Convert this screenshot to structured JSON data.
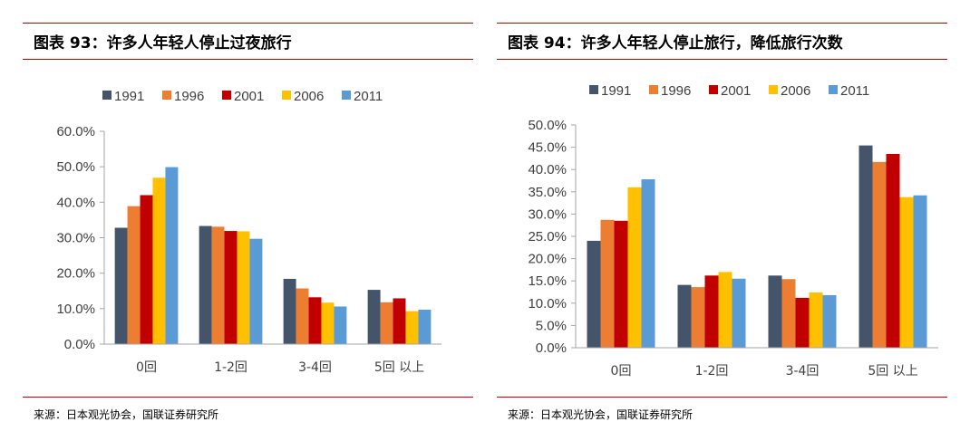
{
  "figures": [
    {
      "title": "图表 93：许多人年轻人停止过夜旅行",
      "source": "来源：日本观光协会，国联证券研究所"
    },
    {
      "title": "图表 94：许多人年轻人停止旅行，降低旅行次数",
      "source": "来源：日本观光协会，国联证券研究所"
    }
  ],
  "colors": {
    "rule": "#C00000",
    "series": [
      "#44546A",
      "#ED7D31",
      "#C00000",
      "#FFC000",
      "#5B9BD5"
    ]
  },
  "chart_data": [
    {
      "type": "bar",
      "title": "",
      "xlabel": "",
      "ylabel": "",
      "categories": [
        "0回",
        "1-2回",
        "3-4回",
        "5回 以上"
      ],
      "series": [
        {
          "name": "1991",
          "values": [
            0.328,
            0.333,
            0.184,
            0.153
          ]
        },
        {
          "name": "1996",
          "values": [
            0.389,
            0.331,
            0.157,
            0.118
          ]
        },
        {
          "name": "2001",
          "values": [
            0.42,
            0.319,
            0.132,
            0.129
          ]
        },
        {
          "name": "2006",
          "values": [
            0.469,
            0.318,
            0.117,
            0.093
          ]
        },
        {
          "name": "2011",
          "values": [
            0.499,
            0.297,
            0.106,
            0.097
          ]
        }
      ],
      "ylim": [
        0,
        0.6
      ],
      "yticks": [
        "0.0%",
        "10.0%",
        "20.0%",
        "30.0%",
        "40.0%",
        "50.0%",
        "60.0%"
      ],
      "grid": false,
      "legend_position": "top"
    },
    {
      "type": "bar",
      "title": "",
      "xlabel": "",
      "ylabel": "",
      "categories": [
        "0回",
        "1-2回",
        "3-4回",
        "5回 以上"
      ],
      "series": [
        {
          "name": "1991",
          "values": [
            0.24,
            0.141,
            0.162,
            0.454
          ]
        },
        {
          "name": "1996",
          "values": [
            0.287,
            0.136,
            0.154,
            0.417
          ]
        },
        {
          "name": "2001",
          "values": [
            0.285,
            0.162,
            0.112,
            0.435
          ]
        },
        {
          "name": "2006",
          "values": [
            0.36,
            0.17,
            0.124,
            0.338
          ]
        },
        {
          "name": "2011",
          "values": [
            0.378,
            0.155,
            0.118,
            0.342
          ]
        }
      ],
      "ylim": [
        0,
        0.5
      ],
      "yticks": [
        "0.0%",
        "5.0%",
        "10.0%",
        "15.0%",
        "20.0%",
        "25.0%",
        "30.0%",
        "35.0%",
        "40.0%",
        "45.0%",
        "50.0%"
      ],
      "grid": false,
      "legend_position": "top"
    }
  ]
}
